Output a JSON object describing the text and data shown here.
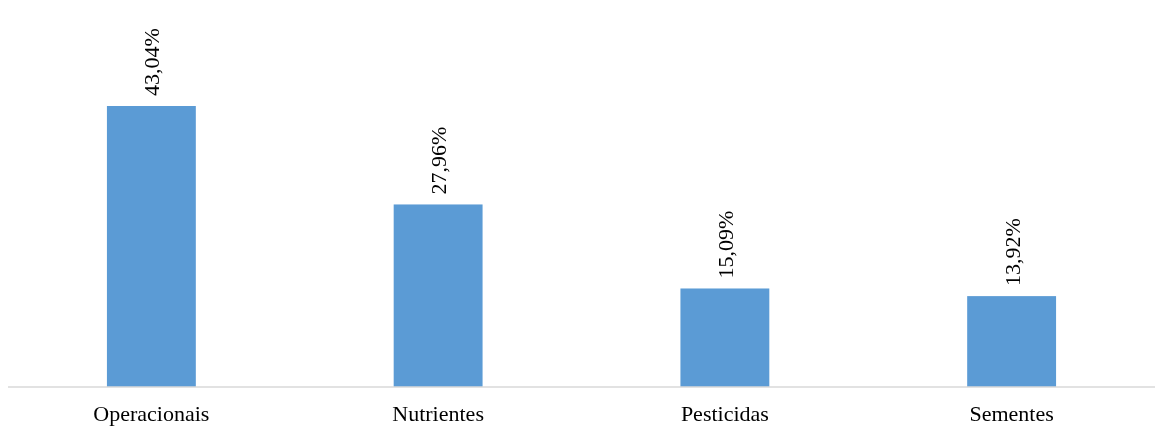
{
  "chart_data": {
    "type": "bar",
    "categories": [
      "Operacionais",
      "Nutrientes",
      "Pesticidas",
      "Sementes"
    ],
    "values": [
      43.04,
      27.96,
      15.09,
      13.92
    ],
    "value_labels": [
      "43,04%",
      "27,96%",
      "15,09%",
      "13,92%"
    ],
    "color": "#5b9bd5"
  }
}
